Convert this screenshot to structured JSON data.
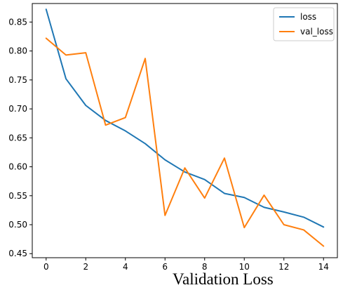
{
  "caption": "Validation Loss",
  "chart_data": {
    "type": "line",
    "title": "",
    "xlabel": "",
    "ylabel": "",
    "x": [
      0,
      1,
      2,
      3,
      4,
      5,
      6,
      7,
      8,
      9,
      10,
      11,
      12,
      13,
      14
    ],
    "xlim": [
      -0.7,
      14.7
    ],
    "ylim": [
      0.443,
      0.882
    ],
    "xticks": [
      0,
      2,
      4,
      6,
      8,
      10,
      12,
      14
    ],
    "yticks": [
      0.45,
      0.5,
      0.55,
      0.6,
      0.65,
      0.7,
      0.75,
      0.8,
      0.85
    ],
    "xtick_labels": [
      "0",
      "2",
      "4",
      "6",
      "8",
      "10",
      "12",
      "14"
    ],
    "ytick_labels": [
      "0.45",
      "0.50",
      "0.55",
      "0.60",
      "0.65",
      "0.70",
      "0.75",
      "0.80",
      "0.85"
    ],
    "grid": false,
    "legend": "top-right",
    "series": [
      {
        "name": "loss",
        "color": "#1f77b4",
        "values": [
          0.872,
          0.752,
          0.706,
          0.68,
          0.662,
          0.64,
          0.612,
          0.591,
          0.578,
          0.554,
          0.547,
          0.53,
          0.522,
          0.513,
          0.496
        ]
      },
      {
        "name": "val_loss",
        "color": "#ff7f0e",
        "values": [
          0.822,
          0.793,
          0.797,
          0.672,
          0.685,
          0.787,
          0.516,
          0.598,
          0.546,
          0.615,
          0.495,
          0.551,
          0.5,
          0.491,
          0.463
        ]
      }
    ]
  }
}
